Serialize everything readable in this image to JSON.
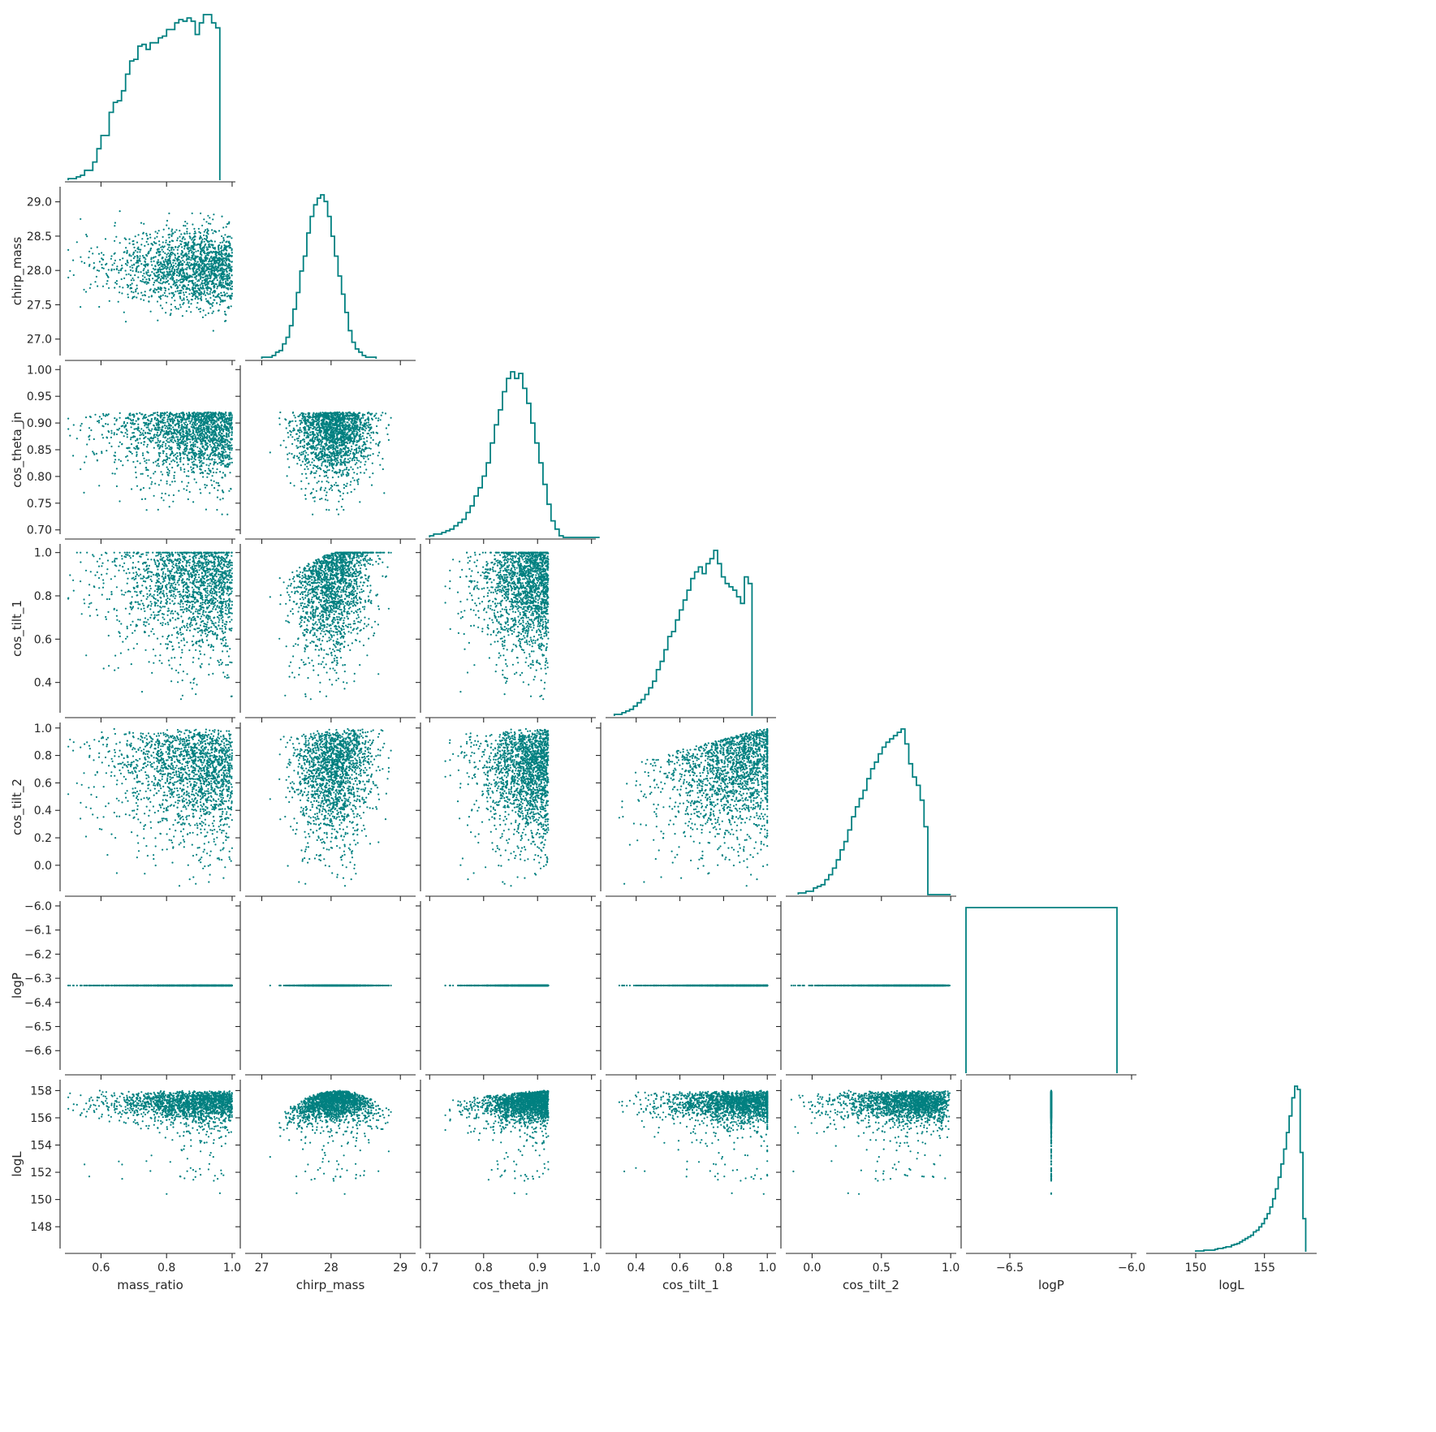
{
  "chart_data": {
    "type": "scatter",
    "subtype": "pairplot-corner",
    "color": "#008080",
    "parameters": [
      {
        "name": "mass_ratio",
        "range": [
          0.49,
          1.01
        ],
        "ticks": [
          0.6,
          0.8,
          1.0
        ],
        "tick_labels": [
          "0.6",
          "0.8",
          "1.0"
        ]
      },
      {
        "name": "chirp_mass",
        "range": [
          26.76,
          29.22
        ],
        "ticks": [
          27,
          28,
          29
        ],
        "tick_labels": [
          "27",
          "28",
          "29"
        ]
      },
      {
        "name": "cos_theta_jn",
        "range": [
          0.692,
          1.008
        ],
        "ticks": [
          0.7,
          0.8,
          0.9,
          1.0
        ],
        "tick_labels": [
          "0.70",
          "0.75",
          "0.80",
          "0.85",
          "0.90",
          "0.95",
          "1.00"
        ],
        "x_tick_labels": [
          "0.7",
          "0.8",
          "0.9",
          "1.0"
        ],
        "y_ticks": [
          0.7,
          0.75,
          0.8,
          0.85,
          0.9,
          0.95,
          1.0
        ]
      },
      {
        "name": "cos_tilt_1",
        "range": [
          0.26,
          1.04
        ],
        "ticks": [
          0.4,
          0.6,
          0.8,
          1.0
        ],
        "tick_labels": [
          "0.4",
          "0.6",
          "0.8",
          "1.0"
        ]
      },
      {
        "name": "cos_tilt_2",
        "range": [
          -0.19,
          1.04
        ],
        "ticks": [
          0.0,
          0.5,
          1.0
        ],
        "tick_labels": [
          "0.0",
          "0.5",
          "1.0"
        ],
        "y_ticks": [
          0.0,
          0.2,
          0.4,
          0.6,
          0.8,
          1.0
        ],
        "y_tick_labels": [
          "0.0",
          "0.2",
          "0.4",
          "0.6",
          "0.8",
          "1.0"
        ]
      },
      {
        "name": "logP",
        "range": [
          -6.68,
          -5.98
        ],
        "ticks": [
          -6.5,
          -6.0
        ],
        "tick_labels": [
          "−6.5",
          "−6.0"
        ],
        "y_ticks": [
          -6.6,
          -6.5,
          -6.4,
          -6.3,
          -6.2,
          -6.1,
          -6.0
        ],
        "y_tick_labels": [
          "−6.6",
          "−6.5",
          "−6.4",
          "−6.3",
          "−6.2",
          "−6.1",
          "−6.0"
        ],
        "constant_value": -6.33
      },
      {
        "name": "logL",
        "range": [
          146.4,
          158.8
        ],
        "ticks": [
          150,
          155
        ],
        "tick_labels": [
          "150",
          "155"
        ],
        "y_ticks": [
          148,
          150,
          152,
          154,
          156,
          158
        ],
        "y_tick_labels": [
          "148",
          "150",
          "152",
          "154",
          "156",
          "158"
        ]
      }
    ],
    "yticks": {
      "chirp_mass": {
        "values": [
          27.0,
          27.5,
          28.0,
          28.5,
          29.0
        ],
        "labels": [
          "27.0",
          "27.5",
          "28.0",
          "28.5",
          "29.0"
        ]
      },
      "cos_theta_jn": {
        "values": [
          0.7,
          0.75,
          0.8,
          0.85,
          0.9,
          0.95,
          1.0
        ],
        "labels": [
          "0.70",
          "0.75",
          "0.80",
          "0.85",
          "0.90",
          "0.95",
          "1.00"
        ]
      },
      "cos_tilt_1": {
        "values": [
          0.4,
          0.6,
          0.8,
          1.0
        ],
        "labels": [
          "0.4",
          "0.6",
          "0.8",
          "1.0"
        ]
      },
      "cos_tilt_2": {
        "values": [
          0.0,
          0.2,
          0.4,
          0.6,
          0.8,
          1.0
        ],
        "labels": [
          "0.0",
          "0.2",
          "0.4",
          "0.6",
          "0.8",
          "1.0"
        ]
      },
      "logP": {
        "values": [
          -6.6,
          -6.5,
          -6.4,
          -6.3,
          -6.2,
          -6.1,
          -6.0
        ],
        "labels": [
          "−6.6",
          "−6.5",
          "−6.4",
          "−6.3",
          "−6.2",
          "−6.1",
          "−6.0"
        ]
      },
      "logL": {
        "values": [
          148,
          150,
          152,
          154,
          156,
          158
        ],
        "labels": [
          "148",
          "150",
          "152",
          "154",
          "156",
          "158"
        ]
      }
    },
    "xticks": {
      "mass_ratio": {
        "values": [
          0.6,
          0.8,
          1.0
        ],
        "labels": [
          "0.6",
          "0.8",
          "1.0"
        ]
      },
      "chirp_mass": {
        "values": [
          27,
          28,
          29
        ],
        "labels": [
          "27",
          "28",
          "29"
        ]
      },
      "cos_theta_jn": {
        "values": [
          0.7,
          0.8,
          0.9,
          1.0
        ],
        "labels": [
          "0.7",
          "0.8",
          "0.9",
          "1.0"
        ]
      },
      "cos_tilt_1": {
        "values": [
          0.4,
          0.6,
          0.8,
          1.0
        ],
        "labels": [
          "0.4",
          "0.6",
          "0.8",
          "1.0"
        ]
      },
      "cos_tilt_2": {
        "values": [
          0.0,
          0.5,
          1.0
        ],
        "labels": [
          "0.0",
          "0.5",
          "1.0"
        ]
      },
      "logP": {
        "values": [
          -6.5,
          -6.0
        ],
        "labels": [
          "−6.5",
          "−6.0"
        ]
      },
      "logL": {
        "values": [
          150,
          155
        ],
        "labels": [
          "150",
          "155"
        ]
      }
    },
    "histograms": {
      "mass_ratio": {
        "bin_edges_start": 0.5,
        "bin_width": 0.0125,
        "heights": [
          0.01,
          0.01,
          0.02,
          0.03,
          0.06,
          0.06,
          0.11,
          0.19,
          0.27,
          0.27,
          0.41,
          0.47,
          0.48,
          0.54,
          0.64,
          0.72,
          0.73,
          0.81,
          0.82,
          0.79,
          0.83,
          0.83,
          0.86,
          0.87,
          0.91,
          0.91,
          0.95,
          0.97,
          0.96,
          0.98,
          0.96,
          0.88,
          0.95,
          1.0,
          1.0,
          0.95,
          0.92
        ]
      },
      "chirp_mass": {
        "bin_edges_start": 27.0,
        "bin_width": 0.05,
        "heights": [
          0.01,
          0.01,
          0.01,
          0.02,
          0.04,
          0.05,
          0.09,
          0.13,
          0.2,
          0.3,
          0.4,
          0.53,
          0.62,
          0.76,
          0.86,
          0.93,
          0.97,
          0.99,
          0.95,
          0.86,
          0.74,
          0.62,
          0.5,
          0.39,
          0.28,
          0.17,
          0.1,
          0.06,
          0.04,
          0.02,
          0.01,
          0.01,
          0.01
        ]
      },
      "cos_theta_jn": {
        "bin_edges_start": 0.7,
        "bin_width": 0.0075,
        "heights": [
          0.01,
          0.02,
          0.02,
          0.03,
          0.04,
          0.05,
          0.07,
          0.09,
          0.11,
          0.15,
          0.19,
          0.25,
          0.3,
          0.37,
          0.45,
          0.57,
          0.68,
          0.77,
          0.88,
          0.96,
          1.0,
          0.96,
          0.99,
          0.9,
          0.81,
          0.69,
          0.57,
          0.45,
          0.32,
          0.2,
          0.1,
          0.05,
          0.01,
          0.0,
          0.0,
          0.0,
          0.0,
          0.0,
          0.0,
          0.0,
          0.0,
          0.0
        ]
      },
      "cos_tilt_1": {
        "bin_edges_start": 0.3,
        "bin_width": 0.0175,
        "heights": [
          0.01,
          0.01,
          0.02,
          0.03,
          0.04,
          0.06,
          0.08,
          0.1,
          0.13,
          0.17,
          0.21,
          0.28,
          0.33,
          0.4,
          0.48,
          0.51,
          0.58,
          0.64,
          0.7,
          0.76,
          0.83,
          0.87,
          0.9,
          0.86,
          0.92,
          0.95,
          1.0,
          0.92,
          0.84,
          0.8,
          0.78,
          0.76,
          0.72,
          0.68,
          0.84,
          0.8
        ]
      },
      "cos_tilt_2": {
        "bin_edges_start": -0.1,
        "bin_width": 0.0275,
        "heights": [
          0.01,
          0.01,
          0.02,
          0.02,
          0.04,
          0.05,
          0.06,
          0.09,
          0.12,
          0.16,
          0.21,
          0.27,
          0.32,
          0.39,
          0.47,
          0.53,
          0.58,
          0.63,
          0.7,
          0.76,
          0.8,
          0.85,
          0.89,
          0.92,
          0.94,
          0.96,
          0.98,
          1.0,
          0.91,
          0.79,
          0.71,
          0.66,
          0.57,
          0.41,
          0.0,
          0.0,
          0.0,
          0.0,
          0.0,
          0.0
        ]
      },
      "logP": {
        "bin_edges_start": -6.68,
        "bin_width": 0.62,
        "heights": [
          1.0
        ]
      },
      "logL": {
        "bin_edges_start": 150.0,
        "bin_width": 0.2,
        "heights": [
          0.005,
          0.005,
          0.005,
          0.01,
          0.01,
          0.01,
          0.01,
          0.015,
          0.02,
          0.02,
          0.025,
          0.03,
          0.03,
          0.04,
          0.045,
          0.05,
          0.06,
          0.07,
          0.08,
          0.09,
          0.1,
          0.12,
          0.13,
          0.15,
          0.17,
          0.2,
          0.23,
          0.27,
          0.32,
          0.38,
          0.45,
          0.53,
          0.62,
          0.72,
          0.82,
          0.93,
          1.0,
          0.98,
          0.6,
          0.2
        ]
      }
    }
  }
}
